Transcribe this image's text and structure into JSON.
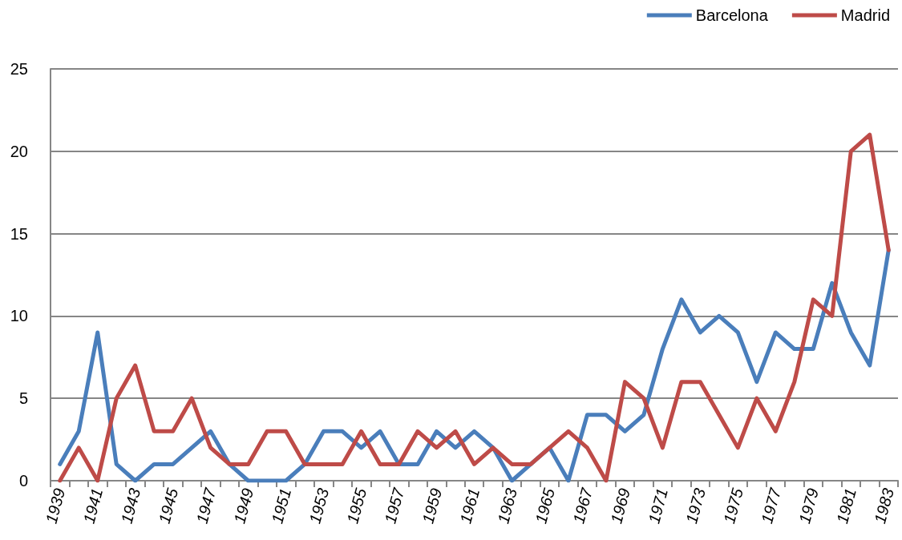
{
  "chart_data": {
    "type": "line",
    "categories": [
      "1939",
      null,
      "1941",
      null,
      "1943",
      null,
      "1945",
      null,
      "1947",
      null,
      "1949",
      null,
      "1951",
      null,
      "1953",
      null,
      "1955",
      null,
      "1957",
      null,
      "1959",
      null,
      "1961",
      null,
      "1963",
      null,
      "1965",
      null,
      "1967",
      null,
      "1969",
      null,
      "1971",
      null,
      "1973",
      null,
      "1975",
      null,
      "1977",
      null,
      "1979",
      null,
      "1981",
      null,
      "1983"
    ],
    "series": [
      {
        "name": "Barcelona",
        "color": "#4a7ebb",
        "values": [
          1,
          3,
          9,
          1,
          0,
          1,
          1,
          2,
          3,
          1,
          0,
          0,
          0,
          1,
          3,
          3,
          2,
          3,
          1,
          1,
          3,
          2,
          3,
          2,
          0,
          1,
          2,
          0,
          4,
          4,
          3,
          4,
          8,
          11,
          9,
          10,
          9,
          6,
          9,
          8,
          8,
          12,
          9,
          7,
          14
        ]
      },
      {
        "name": "Madrid",
        "color": "#be4b48",
        "values": [
          0,
          2,
          0,
          5,
          7,
          3,
          3,
          5,
          2,
          1,
          1,
          3,
          3,
          1,
          1,
          1,
          3,
          1,
          1,
          3,
          2,
          3,
          1,
          2,
          1,
          1,
          2,
          3,
          2,
          0,
          6,
          5,
          2,
          6,
          6,
          4,
          2,
          5,
          3,
          6,
          11,
          10,
          20,
          21,
          14
        ]
      }
    ],
    "ylim": [
      0,
      25
    ],
    "yticks": [
      0,
      5,
      10,
      15,
      20,
      25
    ],
    "grid": "y",
    "legend": "top right",
    "marker": "none",
    "line_style": "solid"
  }
}
